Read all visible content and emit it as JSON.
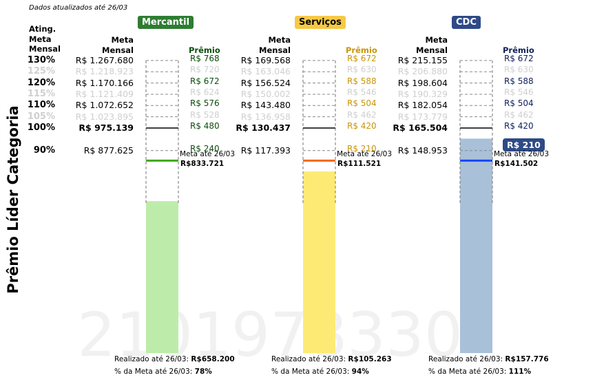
{
  "updated_note": "Dados atualizados até 26/03",
  "side_title": "Prêmio Líder Categoria",
  "ating_header": [
    "Ating.",
    "Meta",
    "Mensal"
  ],
  "meta_header": [
    "Meta",
    "Mensal"
  ],
  "premio_header": "Prêmio",
  "watermark": "2101978330",
  "cum_label": "Meta até 26/03",
  "chart_data": {
    "type": "bar",
    "levels": [
      {
        "label": "130%",
        "pct": 130
      },
      {
        "label": "125%",
        "pct": 125
      },
      {
        "label": "120%",
        "pct": 120
      },
      {
        "label": "115%",
        "pct": 115
      },
      {
        "label": "110%",
        "pct": 110
      },
      {
        "label": "105%",
        "pct": 105
      },
      {
        "label": "100%",
        "pct": 100
      },
      {
        "label": "90%",
        "pct": 90
      }
    ],
    "categories": [
      {
        "name": "Mercantil",
        "header_bg": "#2e7d32",
        "header_fg": "#ffffff",
        "bar_color": "#bdecaa",
        "cum_color": "#3fa90e",
        "prize_color": "#0b4d0b",
        "metas": [
          "R$ 1.267.680",
          "R$ 1.218.923",
          "R$ 1.170.166",
          "R$ 1.121.409",
          "R$ 1.072.652",
          "R$ 1.023.895",
          "R$ 975.139",
          "R$ 877.625"
        ],
        "prizes": [
          "R$ 768",
          "R$ 720",
          "R$ 672",
          "R$ 624",
          "R$ 576",
          "R$ 528",
          "R$ 480",
          "R$ 240"
        ],
        "cum_meta_value": "R$833.721",
        "cum_pct": 85.5,
        "realizado": "R$658.200",
        "pct_meta": "78%",
        "realizado_pct": 67.5,
        "achieved_level": null
      },
      {
        "name": "Serviços",
        "header_bg": "#f6c945",
        "header_fg": "#000000",
        "bar_color": "#fdea74",
        "cum_color": "#f46a0c",
        "prize_color": "#c8950a",
        "metas": [
          "R$ 169.568",
          "R$ 163.046",
          "R$ 156.524",
          "R$ 150.002",
          "R$ 143.480",
          "R$ 136.958",
          "R$ 130.437",
          "R$ 117.393"
        ],
        "prizes": [
          "R$ 672",
          "R$ 630",
          "R$ 588",
          "R$ 546",
          "R$ 504",
          "R$ 462",
          "R$ 420",
          "R$ 210"
        ],
        "cum_meta_value": "R$111.521",
        "cum_pct": 85.5,
        "realizado": "R$105.263",
        "pct_meta": "94%",
        "realizado_pct": 80.7,
        "achieved_level": null
      },
      {
        "name": "CDC",
        "header_bg": "#2e4a86",
        "header_fg": "#ffffff",
        "bar_color": "#a9c0d9",
        "cum_color": "#1746ff",
        "prize_color": "#0f1f5c",
        "metas": [
          "R$ 215.155",
          "R$ 206.880",
          "R$ 198.604",
          "R$ 190.329",
          "R$ 182.054",
          "R$ 173.779",
          "R$ 165.504",
          "R$ 148.953"
        ],
        "prizes": [
          "R$ 672",
          "R$ 630",
          "R$ 588",
          "R$ 546",
          "R$ 504",
          "R$ 462",
          "R$ 420",
          "R$ 210"
        ],
        "cum_meta_value": "R$141.502",
        "cum_pct": 85.5,
        "realizado": "R$157.776",
        "pct_meta": "111%",
        "realizado_pct": 95.3,
        "achieved_level": "R$ 210"
      }
    ],
    "footer_realizado_label": "Realizado até 26/03: ",
    "footer_pct_label": "% da Meta até 26/03: "
  }
}
